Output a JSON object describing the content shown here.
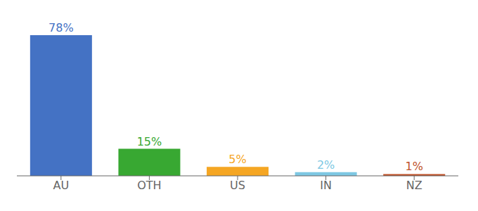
{
  "chart_data": {
    "type": "bar",
    "categories": [
      "AU",
      "OTH",
      "US",
      "IN",
      "NZ"
    ],
    "values": [
      78,
      15,
      5,
      2,
      1
    ],
    "value_labels": [
      "78%",
      "15%",
      "5%",
      "2%",
      "1%"
    ],
    "colors": [
      "#4472c4",
      "#38a832",
      "#f5a623",
      "#7ec8e3",
      "#c0522a"
    ],
    "ylim": [
      0,
      85
    ],
    "data_labels": true,
    "tick_labels": "x",
    "grid": false
  }
}
